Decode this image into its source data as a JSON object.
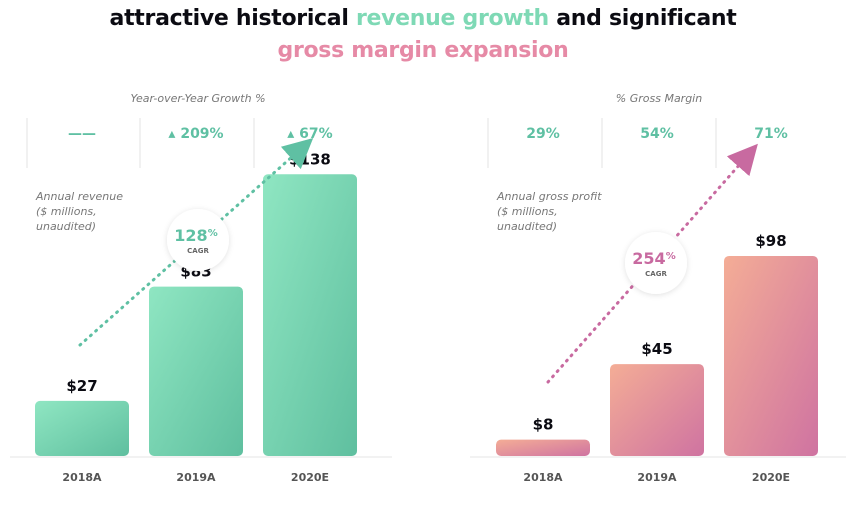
{
  "title": {
    "line1_part1": "attractive historical ",
    "line1_highlight": "revenue growth",
    "line1_part2": " and significant",
    "line2": "gross margin expansion"
  },
  "colors": {
    "revenue_teal": "#7fdcb8",
    "revenue_teal_dark": "#5dbf9f",
    "margin_pink_light": "#f2a596",
    "margin_pink_dark": "#d27aa0",
    "growth_text": "#5fc0a3",
    "cagr_pink": "#c86aa0"
  },
  "chart_data": [
    {
      "type": "bar",
      "name": "revenue",
      "header_label": "Year-over-Year Growth %",
      "header_values": [
        "——",
        "▴ 209%",
        "▴ 67%"
      ],
      "caption": [
        "Annual revenue",
        "($ millions,",
        "unaudited)"
      ],
      "categories": [
        "2018A",
        "2019A",
        "2020E"
      ],
      "values": [
        27,
        83,
        138
      ],
      "value_labels": [
        "$27",
        "$83",
        "$138"
      ],
      "ylim": [
        0,
        145
      ],
      "cagr": {
        "value": "128",
        "unit": "%",
        "label": "CAGR"
      }
    },
    {
      "type": "bar",
      "name": "gross_profit",
      "header_label": "% Gross Margin",
      "header_values": [
        "29%",
        "54%",
        "71%"
      ],
      "caption": [
        "Annual gross profit",
        "($ millions,",
        "unaudited)"
      ],
      "categories": [
        "2018A",
        "2019A",
        "2020E"
      ],
      "values": [
        8,
        45,
        98
      ],
      "value_labels": [
        "$8",
        "$45",
        "$98"
      ],
      "ylim": [
        0,
        145
      ],
      "cagr": {
        "value": "254",
        "unit": "%",
        "label": "CAGR"
      }
    }
  ]
}
